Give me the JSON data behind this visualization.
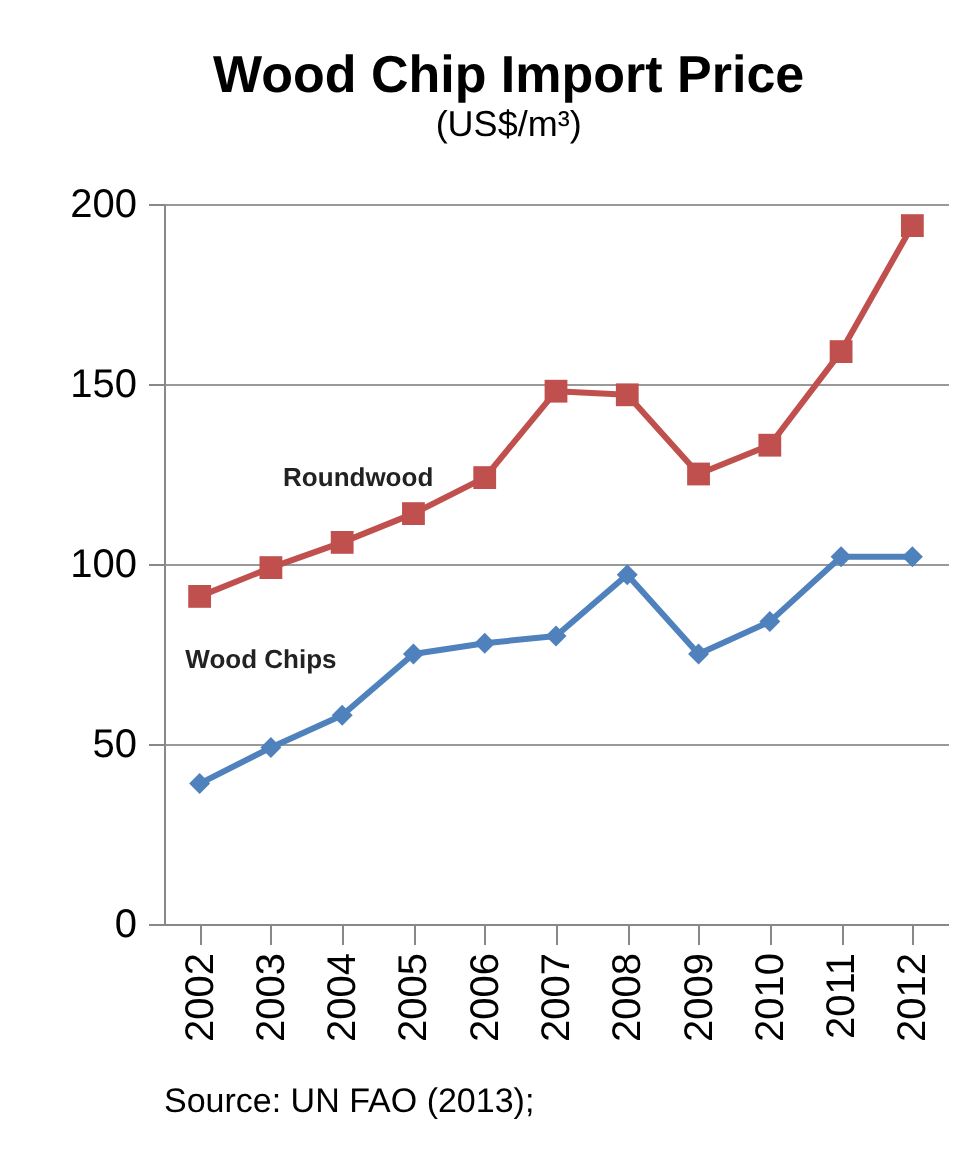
{
  "chart_data": {
    "type": "line",
    "title": "Wood Chip Import Price",
    "subtitle": "(US$/m³)",
    "categories": [
      "2002",
      "2003",
      "2004",
      "2005",
      "2006",
      "2007",
      "2008",
      "2009",
      "2010",
      "2011",
      "2012"
    ],
    "series": [
      {
        "name": "Roundwood",
        "color": "#c0504d",
        "marker": "square",
        "values": [
          91,
          99,
          106,
          114,
          124,
          148,
          147,
          125,
          133,
          159,
          194
        ]
      },
      {
        "name": "Wood Chips",
        "color": "#4f81bd",
        "marker": "diamond",
        "values": [
          39,
          49,
          58,
          75,
          78,
          80,
          97,
          75,
          84,
          102,
          102
        ]
      }
    ],
    "ylim": [
      0,
      200
    ],
    "yticks": [
      0,
      50,
      100,
      150,
      200
    ],
    "grid": "y",
    "line_style": "solid",
    "annotations": [
      "Source: UN FAO (2013);"
    ]
  }
}
